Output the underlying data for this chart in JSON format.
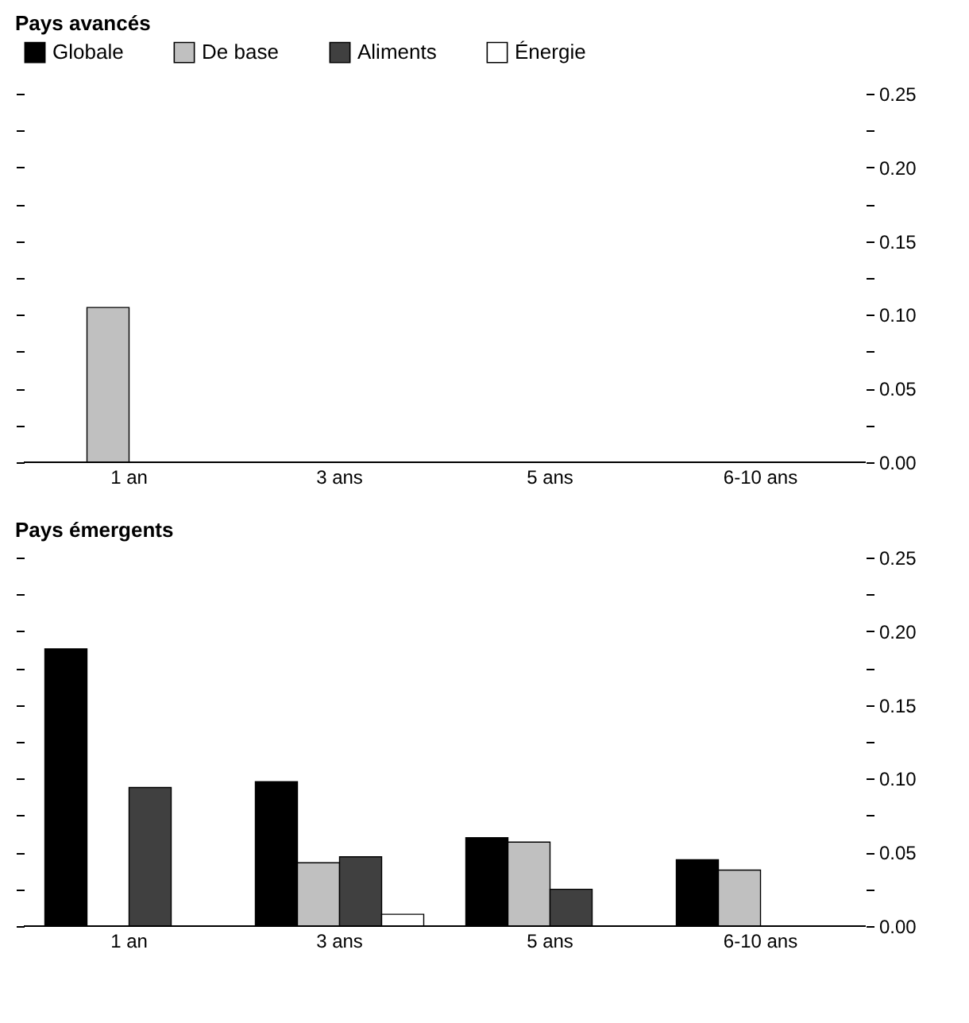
{
  "chart_data": [
    {
      "type": "bar",
      "title": "Pays avancés",
      "categories": [
        "1 an",
        "3 ans",
        "5 ans",
        "6-10 ans"
      ],
      "series": [
        {
          "name": "Globale",
          "color": "#000000",
          "values": [
            null,
            null,
            null,
            null
          ]
        },
        {
          "name": "De base",
          "color": "#c0c0c0",
          "values": [
            0.105,
            null,
            null,
            null
          ]
        },
        {
          "name": "Aliments",
          "color": "#404040",
          "values": [
            null,
            null,
            null,
            null
          ]
        },
        {
          "name": "Énergie",
          "color": "#ffffff",
          "values": [
            null,
            null,
            null,
            null
          ]
        }
      ],
      "ylim": [
        0,
        0.25
      ],
      "yticks": [
        {
          "value": 0,
          "label": "0.00"
        },
        {
          "value": 0.025,
          "label": null
        },
        {
          "value": 0.05,
          "label": "0.05"
        },
        {
          "value": 0.075,
          "label": null
        },
        {
          "value": 0.1,
          "label": "0.10"
        },
        {
          "value": 0.125,
          "label": null
        },
        {
          "value": 0.15,
          "label": "0.15"
        },
        {
          "value": 0.175,
          "label": null
        },
        {
          "value": 0.2,
          "label": "0.20"
        },
        {
          "value": 0.225,
          "label": null
        },
        {
          "value": 0.25,
          "label": "0.25"
        }
      ],
      "grid": false,
      "legend": "top"
    },
    {
      "type": "bar",
      "title": "Pays émergents",
      "categories": [
        "1 an",
        "3 ans",
        "5 ans",
        "6-10 ans"
      ],
      "series": [
        {
          "color": "#000000",
          "values": [
            0.188,
            0.098,
            0.06,
            0.045
          ]
        },
        {
          "color": "#c0c0c0",
          "values": [
            null,
            0.043,
            0.057,
            0.038
          ]
        },
        {
          "color": "#404040",
          "values": [
            0.094,
            0.047,
            0.025,
            null
          ]
        },
        {
          "color": "#ffffff",
          "values": [
            null,
            0.008,
            null,
            null
          ]
        }
      ],
      "ylim": [
        0,
        0.25
      ],
      "yticks": [
        {
          "value": 0,
          "label": "0.00"
        },
        {
          "value": 0.025,
          "label": null
        },
        {
          "value": 0.05,
          "label": "0.05"
        },
        {
          "value": 0.075,
          "label": null
        },
        {
          "value": 0.1,
          "label": "0.10"
        },
        {
          "value": 0.125,
          "label": null
        },
        {
          "value": 0.15,
          "label": "0.15"
        },
        {
          "value": 0.175,
          "label": null
        },
        {
          "value": 0.2,
          "label": "0.20"
        },
        {
          "value": 0.225,
          "label": null
        },
        {
          "value": 0.25,
          "label": "0.25"
        }
      ],
      "grid": false
    }
  ]
}
